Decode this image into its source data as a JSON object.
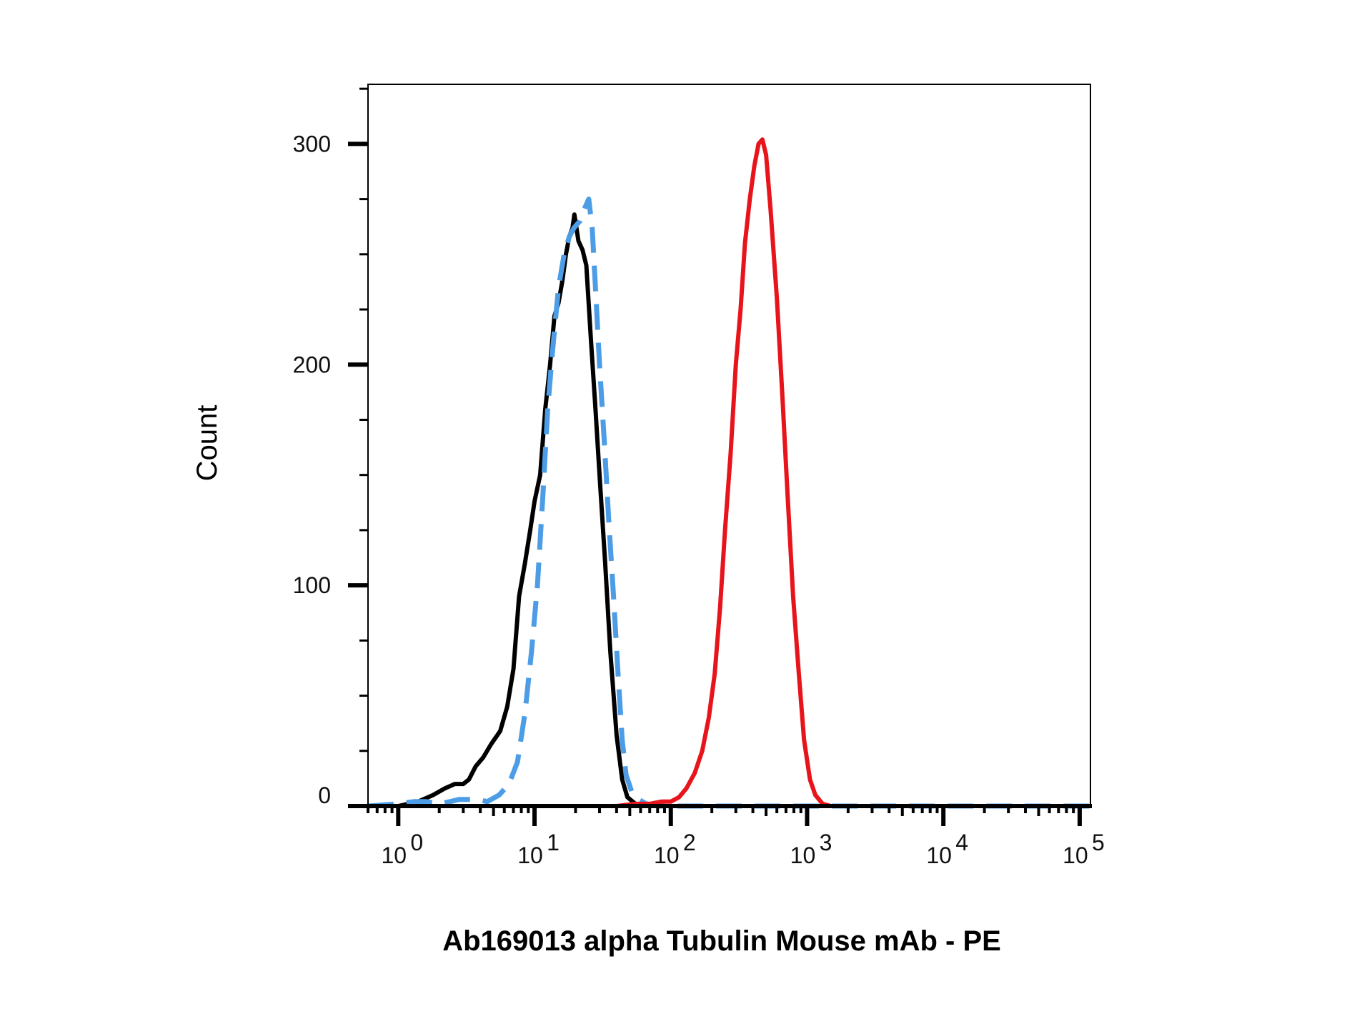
{
  "chart_data": {
    "type": "line",
    "title": "",
    "xlabel": "Ab169013 alpha Tubulin Mouse mAb - PE",
    "ylabel": "Count",
    "x_scale": "log",
    "xlim": [
      0.6,
      120000
    ],
    "ylim": [
      0,
      327
    ],
    "y_ticks": [
      {
        "value": 0,
        "label": "0"
      },
      {
        "value": 100,
        "label": "100"
      },
      {
        "value": 200,
        "label": "200"
      },
      {
        "value": 300,
        "label": "300"
      }
    ],
    "y_minor_step": 25,
    "x_ticks": [
      {
        "value": 1,
        "base": "10",
        "exp": "0"
      },
      {
        "value": 10,
        "base": "10",
        "exp": "1"
      },
      {
        "value": 100,
        "base": "10",
        "exp": "2"
      },
      {
        "value": 1000,
        "base": "10",
        "exp": "3"
      },
      {
        "value": 10000,
        "base": "10",
        "exp": "4"
      },
      {
        "value": 100000,
        "base": "10",
        "exp": "5"
      }
    ],
    "grid": false,
    "legend": "none",
    "series": [
      {
        "color": "#000000",
        "style": "solid",
        "points": [
          [
            0.6,
            0
          ],
          [
            1,
            0
          ],
          [
            1.4,
            2
          ],
          [
            1.8,
            5
          ],
          [
            2.2,
            8
          ],
          [
            2.6,
            10
          ],
          [
            3,
            10
          ],
          [
            3.3,
            12
          ],
          [
            3.7,
            18
          ],
          [
            4.2,
            22
          ],
          [
            4.8,
            28
          ],
          [
            5.6,
            34
          ],
          [
            6.3,
            45
          ],
          [
            7,
            62
          ],
          [
            7.7,
            95
          ],
          [
            8.5,
            110
          ],
          [
            9.3,
            125
          ],
          [
            10,
            138
          ],
          [
            11,
            150
          ],
          [
            12,
            180
          ],
          [
            13,
            200
          ],
          [
            14,
            222
          ],
          [
            15,
            228
          ],
          [
            16,
            238
          ],
          [
            17,
            250
          ],
          [
            18,
            258
          ],
          [
            19,
            262
          ],
          [
            19.6,
            268
          ],
          [
            21,
            256
          ],
          [
            22.5,
            252
          ],
          [
            24,
            245
          ],
          [
            26,
            210
          ],
          [
            28,
            180
          ],
          [
            30,
            150
          ],
          [
            33,
            110
          ],
          [
            36,
            70
          ],
          [
            40,
            32
          ],
          [
            44,
            12
          ],
          [
            48,
            4
          ],
          [
            55,
            1
          ],
          [
            70,
            0
          ],
          [
            120000,
            0
          ]
        ]
      },
      {
        "color": "#4d9de6",
        "style": "dashed",
        "points": [
          [
            0.6,
            0
          ],
          [
            1,
            1
          ],
          [
            1.3,
            2
          ],
          [
            1.6,
            2
          ],
          [
            2,
            1
          ],
          [
            2.4,
            2
          ],
          [
            2.8,
            3
          ],
          [
            3.2,
            3
          ],
          [
            3.8,
            3
          ],
          [
            4.5,
            2
          ],
          [
            5.5,
            5
          ],
          [
            6.5,
            10
          ],
          [
            7.5,
            20
          ],
          [
            8.5,
            42
          ],
          [
            9.5,
            70
          ],
          [
            10.5,
            100
          ],
          [
            11.5,
            140
          ],
          [
            12.5,
            180
          ],
          [
            13.5,
            205
          ],
          [
            15,
            235
          ],
          [
            16.5,
            250
          ],
          [
            18,
            258
          ],
          [
            19.5,
            262
          ],
          [
            21.5,
            265
          ],
          [
            23,
            270
          ],
          [
            25,
            275
          ],
          [
            26.5,
            262
          ],
          [
            28,
            235
          ],
          [
            30,
            200
          ],
          [
            32.5,
            165
          ],
          [
            35,
            130
          ],
          [
            38,
            95
          ],
          [
            41,
            60
          ],
          [
            44,
            30
          ],
          [
            47,
            14
          ],
          [
            52,
            6
          ],
          [
            58,
            3
          ],
          [
            66,
            1
          ],
          [
            80,
            0
          ],
          [
            120000,
            0
          ]
        ]
      },
      {
        "color": "#e8141b",
        "style": "solid",
        "points": [
          [
            0.6,
            0
          ],
          [
            40,
            0
          ],
          [
            55,
            1
          ],
          [
            70,
            1
          ],
          [
            85,
            2
          ],
          [
            100,
            2
          ],
          [
            115,
            4
          ],
          [
            130,
            8
          ],
          [
            150,
            15
          ],
          [
            170,
            25
          ],
          [
            190,
            40
          ],
          [
            210,
            60
          ],
          [
            230,
            90
          ],
          [
            250,
            125
          ],
          [
            275,
            160
          ],
          [
            300,
            200
          ],
          [
            325,
            225
          ],
          [
            350,
            255
          ],
          [
            380,
            275
          ],
          [
            410,
            290
          ],
          [
            440,
            300
          ],
          [
            470,
            302
          ],
          [
            500,
            295
          ],
          [
            540,
            270
          ],
          [
            600,
            230
          ],
          [
            660,
            185
          ],
          [
            720,
            140
          ],
          [
            790,
            95
          ],
          [
            870,
            60
          ],
          [
            950,
            30
          ],
          [
            1050,
            12
          ],
          [
            1150,
            5
          ],
          [
            1300,
            1
          ],
          [
            1500,
            0
          ],
          [
            120000,
            0
          ]
        ]
      }
    ]
  }
}
